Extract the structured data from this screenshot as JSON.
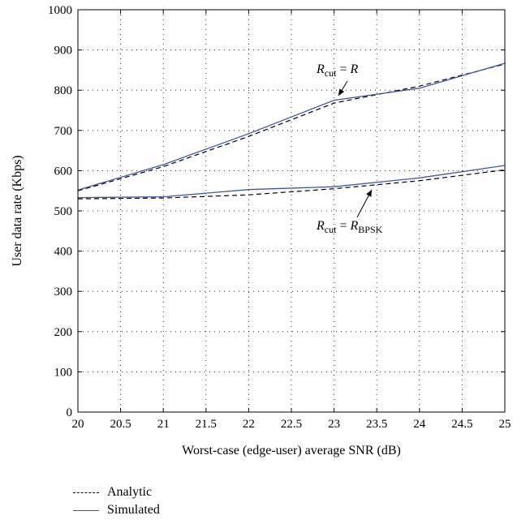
{
  "chart_data": {
    "type": "line",
    "title": "",
    "xlabel": "Worst-case (edge-user) average SNR (dB)",
    "ylabel": "User data rate (Kbps)",
    "xlim": [
      20,
      25
    ],
    "ylim": [
      0,
      1000
    ],
    "xticks": [
      "20",
      "20.5",
      "21",
      "21.5",
      "22",
      "22.5",
      "23",
      "23.5",
      "24",
      "24.5",
      "25"
    ],
    "yticks": [
      "0",
      "100",
      "200",
      "300",
      "400",
      "500",
      "600",
      "700",
      "800",
      "900",
      "1000"
    ],
    "grid": true,
    "legend_position": "bottom-left",
    "x": [
      20,
      21,
      22,
      23,
      24,
      25
    ],
    "series": [
      {
        "name": "Analytic",
        "group": "Rcut = R",
        "style": "dashed",
        "color": "#000000",
        "values": [
          550,
          610,
          685,
          768,
          810,
          865
        ]
      },
      {
        "name": "Simulated",
        "group": "Rcut = R",
        "style": "solid",
        "color": "#3a5aa8",
        "values": [
          552,
          615,
          692,
          775,
          805,
          867
        ]
      },
      {
        "name": "Analytic",
        "group": "Rcut = RBPSK",
        "style": "dashed",
        "color": "#000000",
        "values": [
          530,
          532,
          540,
          555,
          575,
          602
        ]
      },
      {
        "name": "Simulated",
        "group": "Rcut = RBPSK",
        "style": "solid",
        "color": "#3a5aa8",
        "values": [
          533,
          535,
          553,
          560,
          582,
          613
        ]
      }
    ],
    "annotations": [
      {
        "main": "R",
        "sub": "cut",
        "eq": " = ",
        "rhs": "R",
        "rhs_sub": "",
        "x": 23.3,
        "y": 785
      },
      {
        "main": "R",
        "sub": "cut",
        "eq": " = ",
        "rhs": "R",
        "rhs_sub": "BPSK",
        "x": 23.4,
        "y": 558
      }
    ],
    "legend": [
      {
        "label": "Analytic",
        "style": "dashed",
        "color": "#000000"
      },
      {
        "label": "Simulated",
        "style": "solid",
        "color": "#3a5aa8"
      }
    ]
  }
}
